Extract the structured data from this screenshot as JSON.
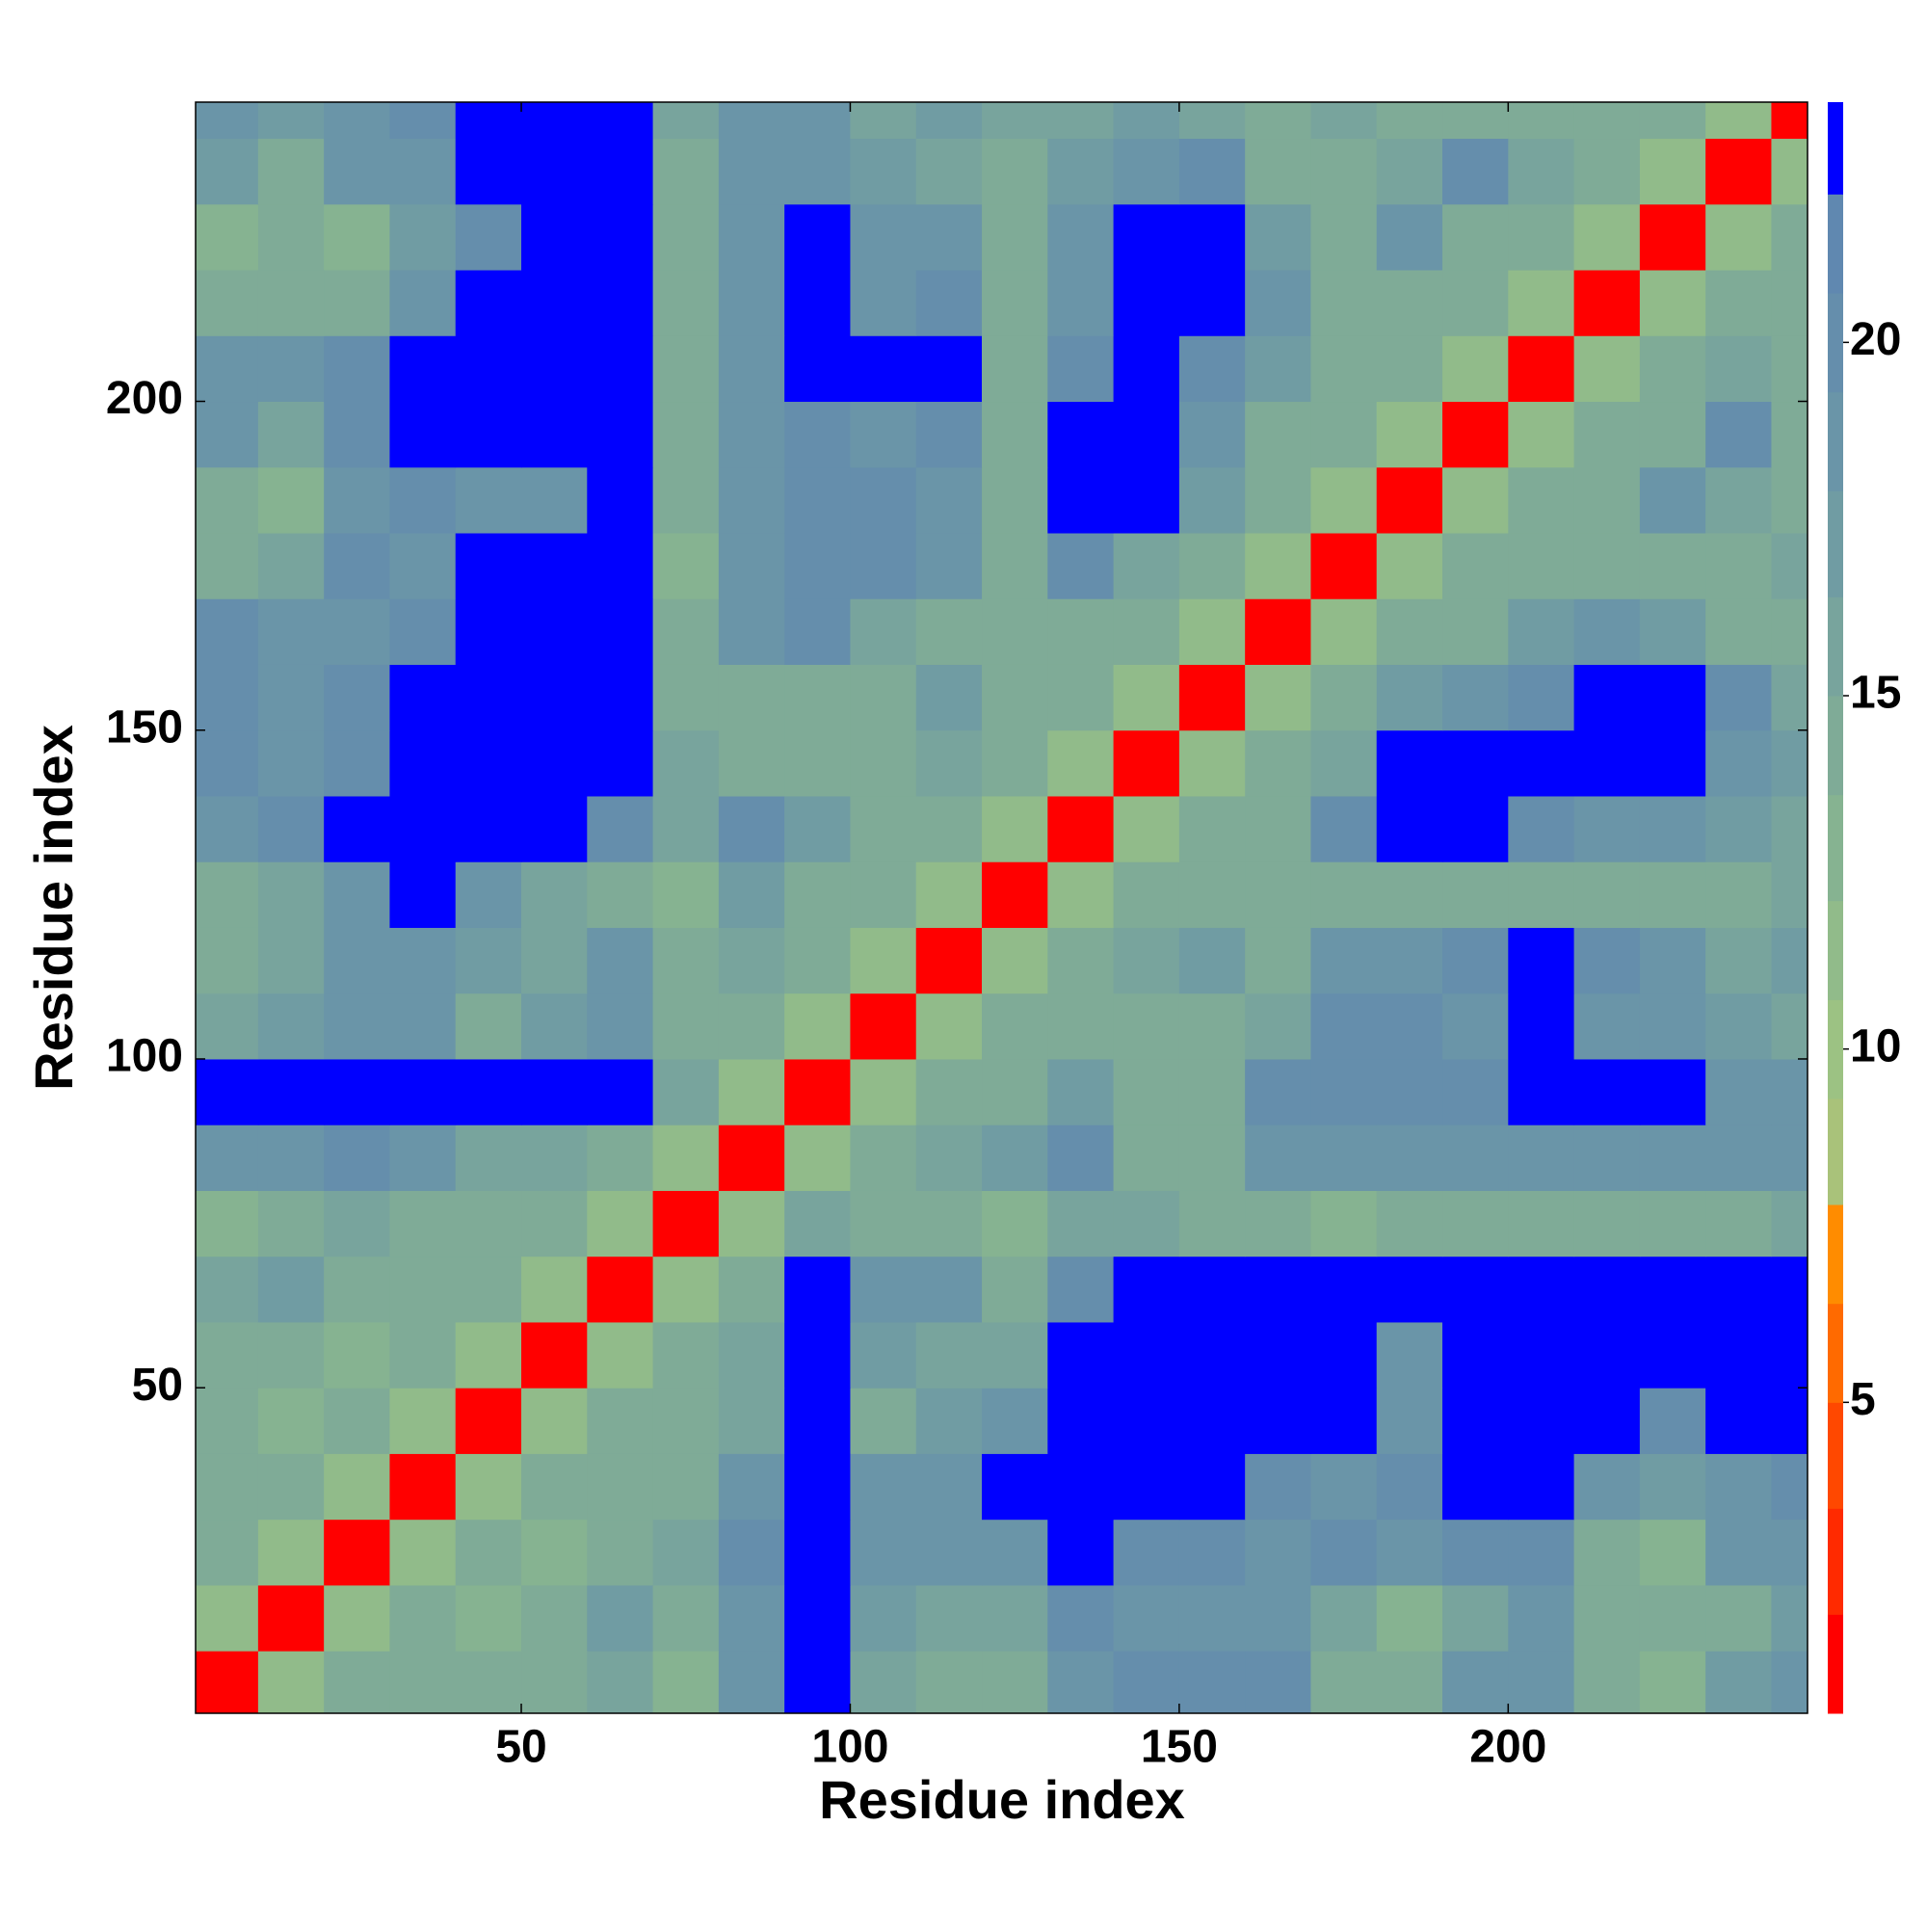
{
  "chart_data": {
    "type": "heatmap",
    "x_label": "Residue index",
    "y_label": "Residue index",
    "x": [
      5,
      15,
      25,
      35,
      45,
      55,
      65,
      75,
      85,
      95,
      105,
      115,
      125,
      135,
      145,
      155,
      165,
      175,
      185,
      195,
      205,
      215,
      225,
      235,
      245
    ],
    "y": [
      5,
      15,
      25,
      35,
      45,
      55,
      65,
      75,
      85,
      95,
      105,
      115,
      125,
      135,
      145,
      155,
      165,
      175,
      185,
      195,
      205,
      215,
      225,
      235,
      245
    ],
    "z": [
      [
        1.5,
        11,
        14,
        14,
        15,
        14,
        16,
        13,
        19,
        23,
        16,
        15,
        14,
        19,
        20,
        20,
        20,
        15,
        14,
        18,
        19,
        14,
        13,
        17,
        19
      ],
      [
        11,
        1.5,
        11,
        14,
        13,
        15,
        17,
        14,
        19,
        23,
        17,
        16,
        16,
        20,
        19,
        19,
        19,
        16,
        13,
        16,
        19,
        14,
        14,
        15,
        17
      ],
      [
        14,
        11,
        1.5,
        11,
        14,
        13,
        15,
        16,
        20,
        23,
        19,
        18,
        19,
        23,
        20,
        20,
        19,
        20,
        19,
        20,
        20,
        14,
        13,
        19,
        19
      ],
      [
        14,
        14,
        11,
        1.5,
        11,
        14,
        14,
        15,
        19,
        23,
        19,
        18,
        23,
        23,
        23,
        23,
        20,
        19,
        20,
        23,
        23,
        19,
        17,
        19,
        20
      ],
      [
        15,
        13,
        14,
        11,
        1.5,
        11,
        14,
        14,
        16,
        23,
        15,
        17,
        19,
        23,
        23,
        23,
        23,
        23,
        19,
        23,
        23,
        23,
        20,
        23,
        23
      ],
      [
        14,
        15,
        13,
        14,
        11,
        1.5,
        11,
        14,
        16,
        23,
        17,
        16,
        16,
        23,
        23,
        23,
        23,
        23,
        19,
        23,
        23,
        23,
        23,
        23,
        23
      ],
      [
        16,
        17,
        15,
        14,
        14,
        11,
        1.5,
        11,
        14,
        23,
        19,
        19,
        15,
        20,
        23,
        23,
        23,
        23,
        23,
        23,
        23,
        23,
        23,
        23,
        23
      ],
      [
        13,
        14,
        16,
        15,
        14,
        14,
        11,
        1.5,
        11,
        16,
        14,
        14,
        13,
        16,
        16,
        14,
        14,
        13,
        14,
        15,
        14,
        14,
        14,
        15,
        16
      ],
      [
        19,
        19,
        20,
        19,
        16,
        16,
        14,
        11,
        1.5,
        11,
        14,
        16,
        17,
        20,
        14,
        14,
        18,
        19,
        19,
        19,
        19,
        18,
        19,
        19,
        19
      ],
      [
        23,
        23,
        23,
        23,
        23,
        23,
        23,
        16,
        11,
        1.5,
        11,
        14,
        15,
        17,
        15,
        14,
        20,
        20,
        20,
        20,
        23,
        23,
        23,
        19,
        19
      ],
      [
        16,
        17,
        19,
        19,
        15,
        17,
        19,
        14,
        14,
        11,
        1.5,
        11,
        14,
        15,
        14,
        14,
        16,
        20,
        20,
        19,
        23,
        19,
        19,
        17,
        16
      ],
      [
        15,
        16,
        18,
        18,
        17,
        16,
        19,
        14,
        16,
        14,
        11,
        1.5,
        11,
        14,
        16,
        17,
        14,
        18,
        19,
        20,
        23,
        20,
        19,
        16,
        17
      ],
      [
        14,
        16,
        19,
        23,
        19,
        16,
        15,
        13,
        17,
        15,
        14,
        11,
        1.5,
        11,
        14,
        15,
        15,
        14,
        15,
        14,
        14,
        15,
        14,
        15,
        16
      ],
      [
        19,
        20,
        23,
        23,
        23,
        23,
        20,
        16,
        20,
        17,
        15,
        14,
        11,
        1.5,
        11,
        14,
        14,
        20,
        23,
        23,
        20,
        19,
        19,
        17,
        16
      ],
      [
        20,
        19,
        20,
        23,
        23,
        23,
        23,
        16,
        14,
        15,
        14,
        16,
        14,
        11,
        1.5,
        11,
        14,
        16,
        23,
        23,
        23,
        23,
        23,
        19,
        17
      ],
      [
        20,
        19,
        20,
        23,
        23,
        23,
        23,
        14,
        14,
        14,
        14,
        17,
        15,
        14,
        11,
        1.5,
        11,
        14,
        17,
        19,
        20,
        23,
        23,
        20,
        16
      ],
      [
        20,
        19,
        19,
        20,
        23,
        23,
        23,
        14,
        18,
        20,
        16,
        14,
        15,
        14,
        14,
        11,
        1.5,
        11,
        14,
        15,
        17,
        19,
        17,
        15,
        14
      ],
      [
        15,
        16,
        20,
        19,
        23,
        23,
        23,
        13,
        19,
        20,
        20,
        18,
        14,
        20,
        16,
        14,
        11,
        1.5,
        11,
        14,
        14,
        14,
        15,
        14,
        16
      ],
      [
        14,
        13,
        19,
        20,
        19,
        19,
        23,
        14,
        19,
        20,
        20,
        19,
        15,
        23,
        23,
        17,
        14,
        11,
        1.5,
        11,
        14,
        15,
        19,
        16,
        14
      ],
      [
        18,
        16,
        20,
        23,
        23,
        23,
        23,
        15,
        19,
        20,
        19,
        20,
        14,
        23,
        23,
        19,
        15,
        14,
        11,
        1.5,
        11,
        14,
        15,
        20,
        15
      ],
      [
        19,
        19,
        20,
        23,
        23,
        23,
        23,
        14,
        19,
        23,
        23,
        23,
        14,
        20,
        23,
        20,
        17,
        14,
        14,
        11,
        1.5,
        11,
        14,
        16,
        14
      ],
      [
        14,
        14,
        14,
        19,
        23,
        23,
        23,
        14,
        18,
        23,
        19,
        20,
        15,
        19,
        23,
        23,
        19,
        14,
        15,
        14,
        11,
        1.5,
        11,
        14,
        14
      ],
      [
        13,
        14,
        13,
        17,
        20,
        23,
        23,
        14,
        19,
        23,
        19,
        19,
        14,
        19,
        23,
        23,
        17,
        15,
        19,
        15,
        14,
        11,
        1.5,
        11,
        14
      ],
      [
        17,
        15,
        19,
        19,
        23,
        23,
        23,
        15,
        19,
        19,
        17,
        16,
        15,
        17,
        19,
        20,
        15,
        14,
        16,
        20,
        16,
        14,
        11,
        1.5,
        11
      ],
      [
        19,
        17,
        19,
        20,
        23,
        23,
        23,
        16,
        19,
        19,
        16,
        17,
        16,
        16,
        17,
        16,
        14,
        16,
        14,
        15,
        14,
        14,
        14,
        11,
        1.5
      ]
    ],
    "xlim": [
      0.5,
      245.5
    ],
    "ylim": [
      0.5,
      245.5
    ],
    "xticks": [
      50,
      100,
      150,
      200
    ],
    "yticks": [
      50,
      100,
      150,
      200
    ],
    "zlim": [
      0.6,
      23.4
    ],
    "zticks": [
      5,
      10,
      15,
      20
    ],
    "color_levels": [
      0.6,
      2,
      3.5,
      5,
      6.4,
      7.8,
      9.3,
      10.7,
      12.1,
      13.6,
      15,
      16.4,
      17.9,
      19.3,
      20.7,
      22.1,
      23.4
    ],
    "colors": [
      "#ff0000",
      "#ff2a00",
      "#ff4800",
      "#ff6a00",
      "#ff8c00",
      "#a9c27a",
      "#9cc283",
      "#91bb8a",
      "#86b391",
      "#7fab97",
      "#78a49d",
      "#709ca3",
      "#6a95a8",
      "#658eac",
      "#6088b0",
      "#0000ff"
    ]
  }
}
